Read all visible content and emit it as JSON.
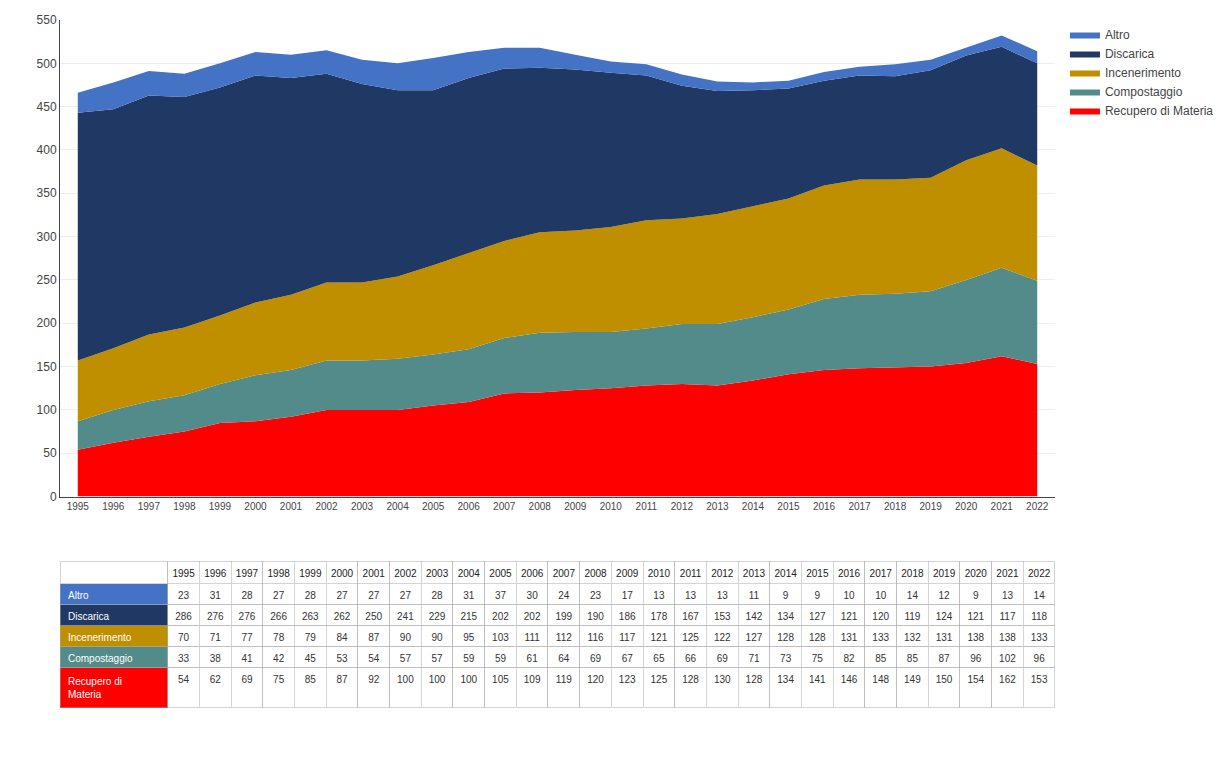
{
  "chart_data": {
    "type": "area",
    "stacked": true,
    "x": [
      1995,
      1996,
      1997,
      1998,
      1999,
      2000,
      2001,
      2002,
      2003,
      2004,
      2005,
      2006,
      2007,
      2008,
      2009,
      2010,
      2011,
      2012,
      2013,
      2014,
      2015,
      2016,
      2017,
      2018,
      2019,
      2020,
      2021,
      2022
    ],
    "xlim": [
      1994.5,
      2022.5
    ],
    "xticks": [
      1995,
      1996,
      1997,
      1998,
      1999,
      2000,
      2001,
      2002,
      2003,
      2004,
      2005,
      2006,
      2007,
      2008,
      2009,
      2010,
      2011,
      2012,
      2013,
      2014,
      2015,
      2016,
      2017,
      2018,
      2019,
      2020,
      2021,
      2022
    ],
    "ylim": [
      0,
      550
    ],
    "yticks": [
      0,
      50,
      100,
      150,
      200,
      250,
      300,
      350,
      400,
      450,
      500,
      550
    ],
    "grid": true,
    "legend": "right",
    "series": [
      {
        "name": "Recupero di Materia",
        "color": "#FF0000",
        "values": [
          54,
          62,
          69,
          75,
          85,
          87,
          92,
          100,
          100,
          100,
          105,
          109,
          119,
          120,
          123,
          125,
          128,
          130,
          128,
          134,
          141,
          146,
          148,
          149,
          150,
          154,
          162,
          153
        ]
      },
      {
        "name": "Compostaggio",
        "color": "#538B8B",
        "values": [
          33,
          38,
          41,
          42,
          45,
          53,
          54,
          57,
          57,
          59,
          59,
          61,
          64,
          69,
          67,
          65,
          66,
          69,
          71,
          73,
          75,
          82,
          85,
          85,
          87,
          96,
          102,
          96
        ]
      },
      {
        "name": "Incenerimento",
        "color": "#BF8F00",
        "values": [
          70,
          71,
          77,
          78,
          79,
          84,
          87,
          90,
          90,
          95,
          103,
          111,
          112,
          116,
          117,
          121,
          125,
          122,
          127,
          128,
          128,
          131,
          133,
          132,
          131,
          138,
          138,
          133
        ]
      },
      {
        "name": "Discarica",
        "color": "#1F3864",
        "values": [
          286,
          276,
          276,
          266,
          263,
          262,
          250,
          241,
          229,
          215,
          202,
          202,
          199,
          190,
          186,
          178,
          167,
          153,
          142,
          134,
          127,
          121,
          120,
          119,
          124,
          121,
          117,
          118
        ]
      },
      {
        "name": "Altro",
        "color": "#4472C4",
        "values": [
          23,
          31,
          28,
          27,
          28,
          27,
          27,
          27,
          28,
          31,
          37,
          30,
          24,
          23,
          17,
          13,
          13,
          13,
          11,
          9,
          9,
          10,
          10,
          14,
          12,
          9,
          13,
          14
        ]
      }
    ]
  }
}
